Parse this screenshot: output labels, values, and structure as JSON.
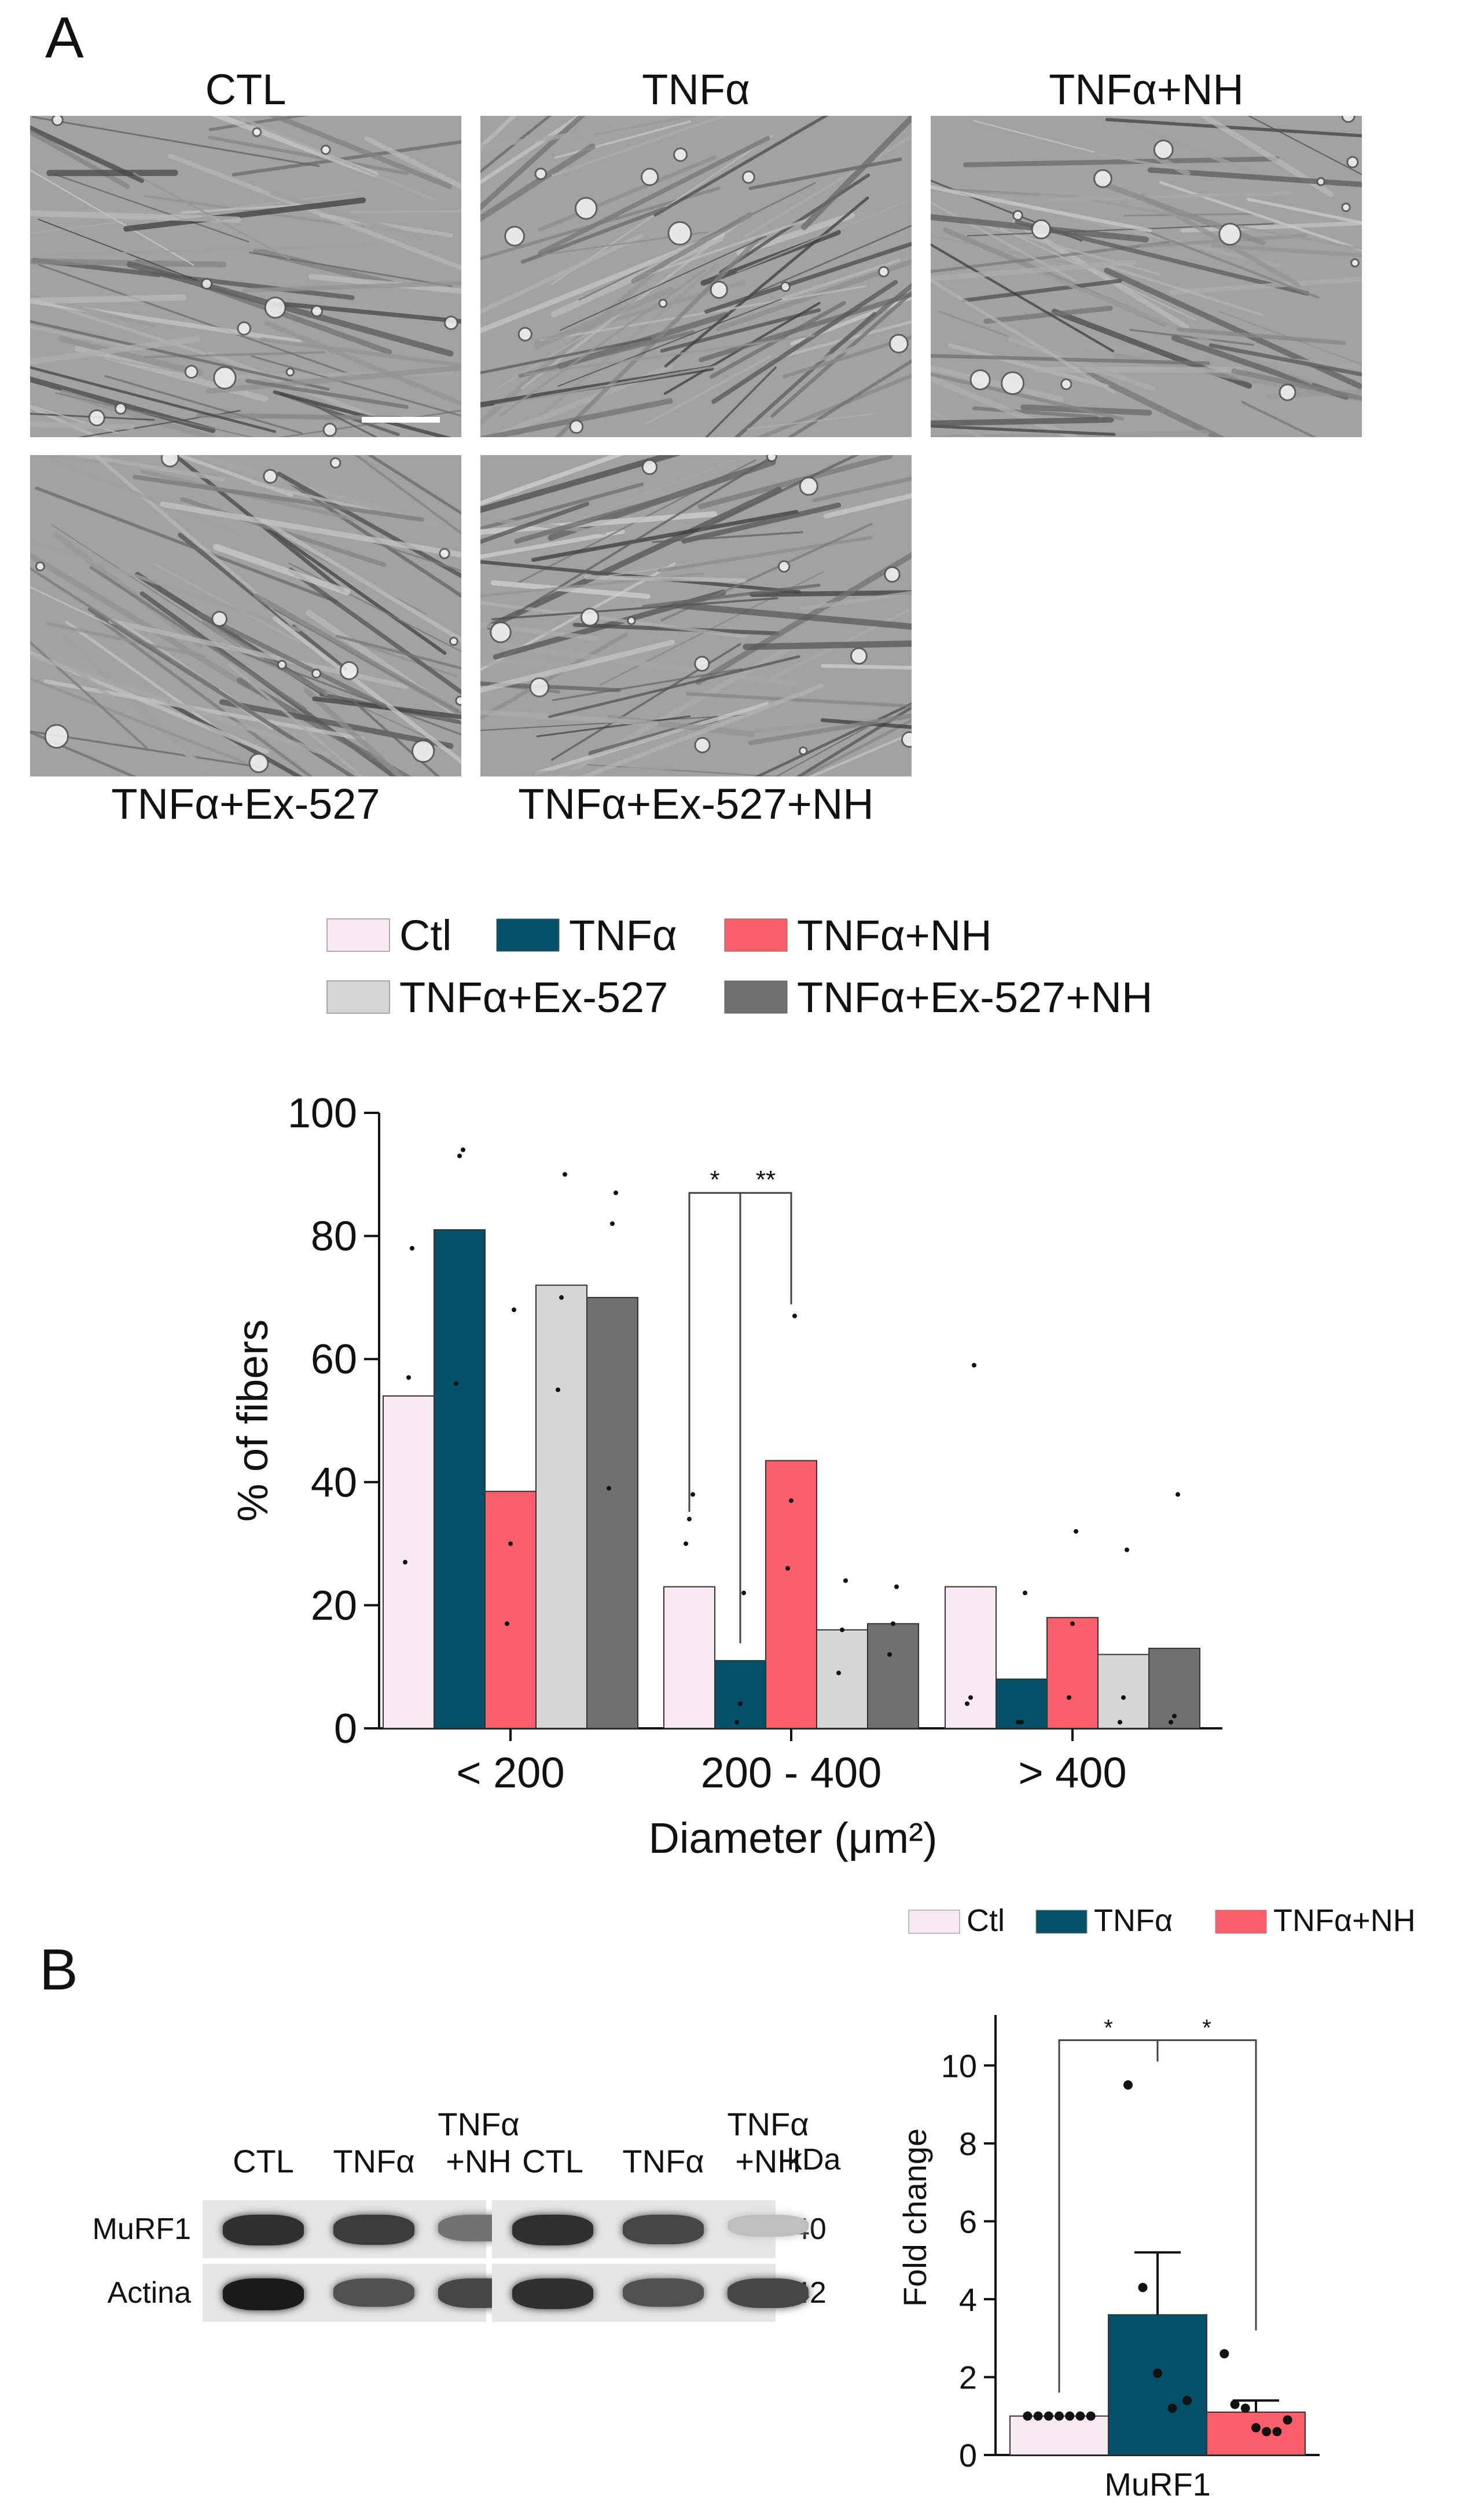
{
  "panel_a": {
    "letter": "A",
    "micrographs": [
      {
        "label": "CTL"
      },
      {
        "label": "TNFα"
      },
      {
        "label": "TNFα+NH"
      },
      {
        "label": "TNFα+Ex-527"
      },
      {
        "label": "TNFα+Ex-527+NH"
      }
    ]
  },
  "panel_b": {
    "letter": "B",
    "blot": {
      "lanes_left": [
        "CTL",
        "TNFα",
        "TNFα\n+NH"
      ],
      "lanes_right": [
        "CTL",
        "TNFα",
        "TNFα\n+NH"
      ],
      "unit_label": "kDa",
      "rows": [
        {
          "label": "MuRF1",
          "kda": "40",
          "intensity_left": [
            0.85,
            0.8,
            0.55
          ],
          "intensity_right": [
            0.85,
            0.75,
            0.2
          ]
        },
        {
          "label": "Actina",
          "kda": "42",
          "intensity_left": [
            0.95,
            0.7,
            0.75
          ],
          "intensity_right": [
            0.85,
            0.7,
            0.75
          ]
        }
      ]
    }
  },
  "colors": {
    "ctl": "#f7e9f1",
    "tnfa": "#045068",
    "tnfa_nh": "#fb5f6b",
    "ex527": "#d6d6d6",
    "ex527_nh": "#707070"
  },
  "chart_data": [
    {
      "type": "bar",
      "legend": [
        "Ctl",
        "TNFα",
        "TNFα+NH",
        "TNFα+Ex-527",
        "TNFα+Ex-527+NH"
      ],
      "legend_placement": "top",
      "categories": [
        "< 200",
        "200 - 400",
        "> 400"
      ],
      "series": [
        {
          "name": "Ctl",
          "values": [
            54,
            23,
            23
          ],
          "points": [
            [
              27,
              57,
              78
            ],
            [
              30,
              34,
              38
            ],
            [
              4,
              5,
              59
            ]
          ]
        },
        {
          "name": "TNFα",
          "values": [
            81,
            11,
            8
          ],
          "points": [
            [
              56,
              93,
              94
            ],
            [
              1,
              4,
              22
            ],
            [
              1,
              1,
              22
            ]
          ]
        },
        {
          "name": "TNFα+NH",
          "values": [
            38.5,
            43.5,
            18
          ],
          "points": [
            [
              17,
              30,
              68
            ],
            [
              26,
              37,
              67
            ],
            [
              5,
              17,
              32
            ]
          ]
        },
        {
          "name": "TNFα+Ex-527",
          "values": [
            72,
            16,
            12
          ],
          "points": [
            [
              55,
              70,
              90
            ],
            [
              9,
              16,
              24
            ],
            [
              1,
              5,
              29
            ]
          ]
        },
        {
          "name": "TNFα+Ex-527+NH",
          "values": [
            70,
            17,
            13
          ],
          "points": [
            [
              39,
              82,
              87
            ],
            [
              12,
              17,
              23
            ],
            [
              1,
              2,
              38
            ]
          ]
        }
      ],
      "xlabel": "Diameter (μm²)",
      "ylabel": "% of fibers",
      "ylim": [
        0,
        100
      ],
      "yticks": [
        0,
        20,
        40,
        60,
        80,
        100
      ],
      "significance": [
        {
          "from": "Ctl",
          "to": "TNFα",
          "category": "200 - 400",
          "label": "*"
        },
        {
          "from": "TNFα",
          "to": "TNFα+NH",
          "category": "200 - 400",
          "label": "**"
        }
      ],
      "grid": false
    },
    {
      "type": "bar",
      "legend": [
        "Ctl",
        "TNFα",
        "TNFα+NH"
      ],
      "legend_placement": "top",
      "categories": [
        "MuRF1"
      ],
      "series": [
        {
          "name": "Ctl",
          "values": [
            1.0
          ],
          "sem": 0.0,
          "points": [
            1,
            1,
            1,
            1,
            1,
            1,
            1
          ]
        },
        {
          "name": "TNFα",
          "values": [
            3.6
          ],
          "sem": 1.6,
          "points": [
            9.5,
            4.3,
            2.1,
            1.2,
            1.4
          ]
        },
        {
          "name": "TNFα+NH",
          "values": [
            1.1
          ],
          "sem": 0.3,
          "points": [
            2.6,
            1.3,
            1.2,
            0.7,
            0.6,
            0.6,
            0.9
          ]
        }
      ],
      "xlabel": "",
      "ylabel": "Fold change",
      "ylim": [
        0,
        11
      ],
      "yticks": [
        0,
        2,
        4,
        6,
        8,
        10
      ],
      "significance": [
        {
          "from": "Ctl",
          "to": "TNFα",
          "label": "*"
        },
        {
          "from": "TNFα",
          "to": "TNFα+NH",
          "label": "*"
        }
      ],
      "grid": false
    }
  ]
}
